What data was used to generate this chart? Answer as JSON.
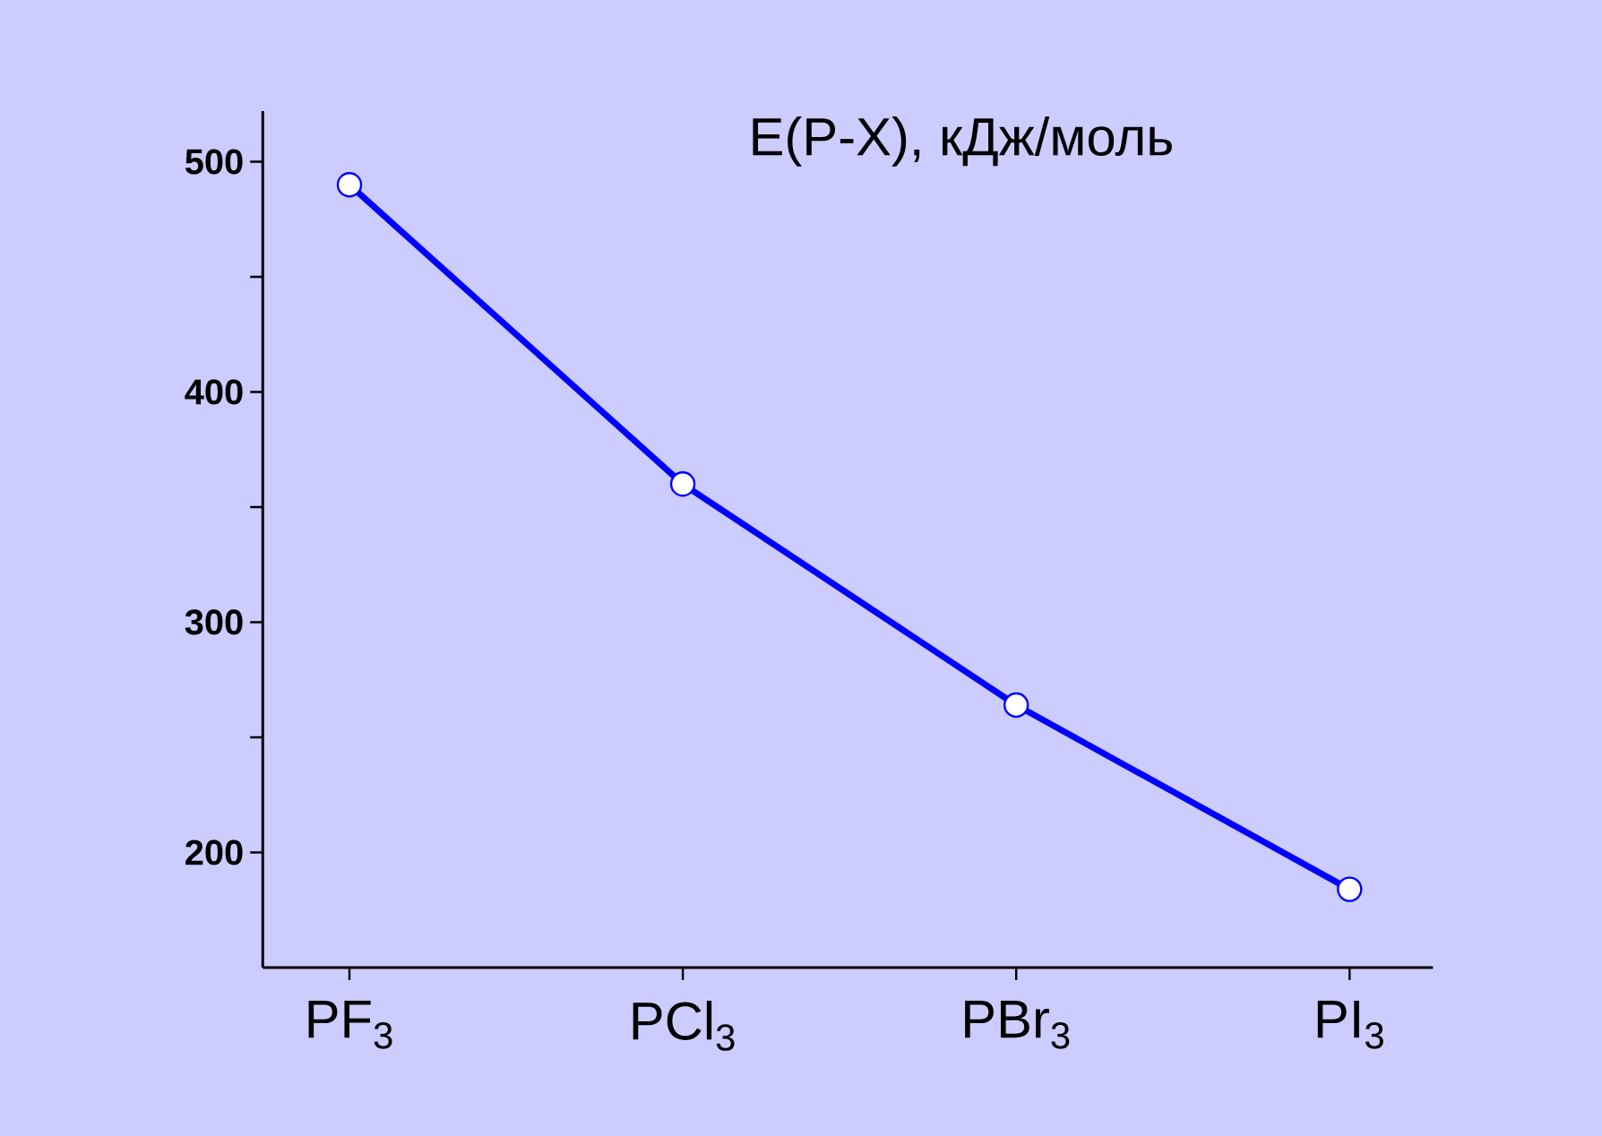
{
  "chart_data": {
    "type": "line",
    "title": "E(P-X), кДж/моль",
    "categories": [
      "PF$_{3}$",
      "PCl$_{3}$",
      "PBr$_{3}$",
      "PI$_{3}$"
    ],
    "values": [
      490,
      360,
      264,
      184
    ],
    "color": "#0000ff",
    "marker": "circle",
    "line_style": "solid",
    "ylim": [
      150,
      522
    ],
    "yticks": [
      {
        "value": 200,
        "label": "200"
      },
      {
        "value": 250,
        "label": null
      },
      {
        "value": 300,
        "label": "300"
      },
      {
        "value": 350,
        "label": null
      },
      {
        "value": 400,
        "label": "400"
      },
      {
        "value": 450,
        "label": null
      },
      {
        "value": 500,
        "label": "500"
      }
    ]
  }
}
